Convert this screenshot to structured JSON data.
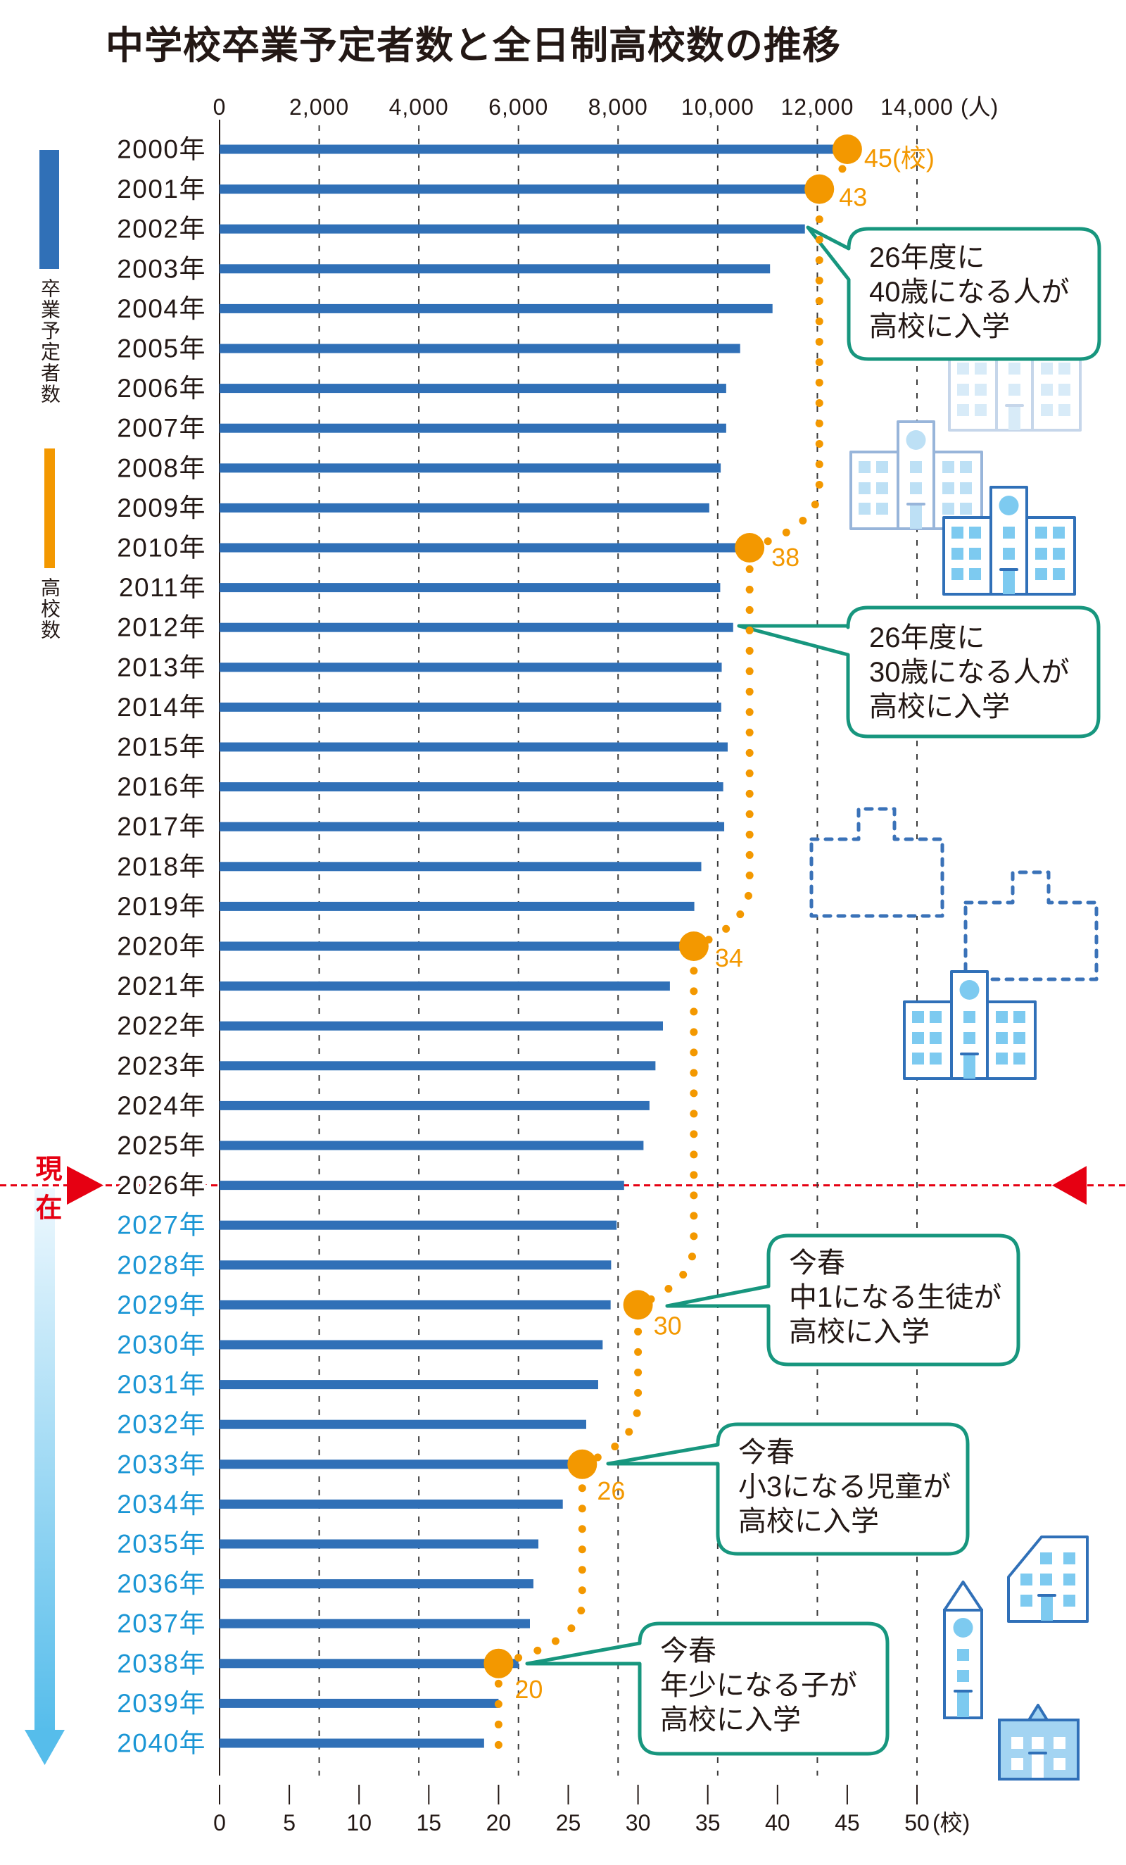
{
  "legend": [
    {
      "label": "卒業予定者数",
      "color": "#3070b7"
    },
    {
      "label": "高校数",
      "color": "#f39800"
    }
  ],
  "current_marker": {
    "label": "現在",
    "year": "2026年",
    "color": "#e60012"
  },
  "colors": {
    "bar": "#3070b7",
    "schools": "#f39800",
    "past_year_text": "#231815",
    "future_year_text": "#1a96d5",
    "callout_border": "#17967e",
    "current_line": "#e60012",
    "arrow_top": "#eef8fe",
    "arrow_bottom": "#56bdeb"
  },
  "chart_data": {
    "type": "bar",
    "orientation": "horizontal",
    "title": "中学校卒業予定者数と全日制高校数の推移",
    "categories": [
      "2000年",
      "2001年",
      "2002年",
      "2003年",
      "2004年",
      "2005年",
      "2006年",
      "2007年",
      "2008年",
      "2009年",
      "2010年",
      "2011年",
      "2012年",
      "2013年",
      "2014年",
      "2015年",
      "2016年",
      "2017年",
      "2018年",
      "2019年",
      "2020年",
      "2021年",
      "2022年",
      "2023年",
      "2024年",
      "2025年",
      "2026年",
      "2027年",
      "2028年",
      "2029年",
      "2030年",
      "2031年",
      "2032年",
      "2033年",
      "2034年",
      "2035年",
      "2036年",
      "2037年",
      "2038年",
      "2039年",
      "2040年"
    ],
    "current_category": "2026年",
    "future_from": "2027年",
    "series": [
      {
        "name": "卒業予定者数",
        "unit": "人",
        "type": "bar",
        "axis": "top",
        "color": "#3070b7",
        "values": [
          12400,
          12000,
          11750,
          11050,
          11100,
          10450,
          10170,
          10170,
          10060,
          9830,
          10500,
          10050,
          10310,
          10080,
          10070,
          10200,
          10110,
          10130,
          9670,
          9530,
          9350,
          9040,
          8900,
          8750,
          8630,
          8510,
          8120,
          7970,
          7860,
          7850,
          7690,
          7600,
          7360,
          7150,
          6890,
          6400,
          6300,
          6230,
          6000,
          5600,
          5310
        ]
      },
      {
        "name": "高校数",
        "unit": "校",
        "type": "line",
        "style": "dotted-step",
        "axis": "bottom",
        "color": "#f39800",
        "points": [
          {
            "category": "2000年",
            "value": 45,
            "label": "45",
            "label_suffix": "(校)"
          },
          {
            "category": "2001年",
            "value": 43,
            "label": "43",
            "label_suffix": ""
          },
          {
            "category": "2010年",
            "value": 38,
            "label": "38",
            "label_suffix": ""
          },
          {
            "category": "2020年",
            "value": 34,
            "label": "34",
            "label_suffix": ""
          },
          {
            "category": "2029年",
            "value": 30,
            "label": "30",
            "label_suffix": ""
          },
          {
            "category": "2033年",
            "value": 26,
            "label": "26",
            "label_suffix": ""
          },
          {
            "category": "2038年",
            "value": 20,
            "label": "20",
            "label_suffix": ""
          }
        ],
        "extends_to": "2040年"
      }
    ],
    "x_axis_top": {
      "range": [
        0,
        14000
      ],
      "ticks": [
        0,
        2000,
        4000,
        6000,
        8000,
        10000,
        12000,
        14000
      ],
      "tick_labels": [
        "0",
        "2,000",
        "4,000",
        "6,000",
        "8,000",
        "10,000",
        "12,000",
        "14,000"
      ],
      "unit_label": "(人)"
    },
    "x_axis_bottom": {
      "range": [
        0,
        50
      ],
      "ticks": [
        0,
        5,
        10,
        15,
        20,
        25,
        30,
        35,
        40,
        45,
        50
      ],
      "tick_labels": [
        "0",
        "5",
        "10",
        "15",
        "20",
        "25",
        "30",
        "35",
        "40",
        "45",
        "50"
      ],
      "unit_label": "(校)"
    },
    "grid": true,
    "legend_position": "left",
    "annotations": [
      {
        "target": "2002年",
        "lines": [
          "26年度に",
          "40歳になる人が",
          "高校に入学"
        ]
      },
      {
        "target": "2012年",
        "lines": [
          "26年度に",
          "30歳になる人が",
          "高校に入学"
        ]
      },
      {
        "target": "2029年",
        "lines": [
          "今春",
          "中1になる生徒が",
          "高校に入学"
        ]
      },
      {
        "target": "2033年",
        "lines": [
          "今春",
          "小3になる児童が",
          "高校に入学"
        ]
      },
      {
        "target": "2038年",
        "lines": [
          "今春",
          "年少になる子が",
          "高校に入学"
        ]
      }
    ]
  }
}
